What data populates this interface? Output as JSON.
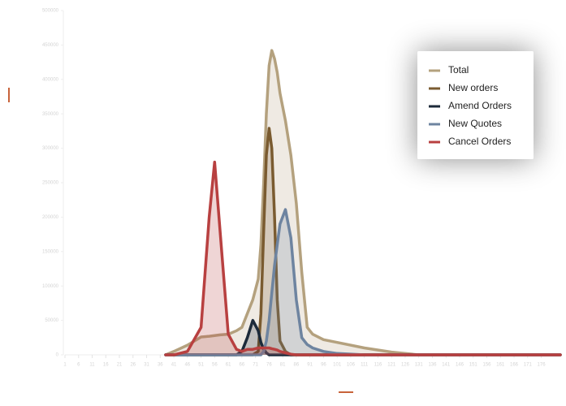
{
  "chart_data": {
    "type": "area",
    "x": [
      38,
      41,
      46,
      51,
      54,
      56,
      58,
      61,
      64,
      66,
      68,
      70,
      72,
      73,
      74,
      75,
      76,
      77,
      78,
      79,
      80,
      82,
      84,
      86,
      88,
      90,
      92,
      96,
      101,
      111,
      121,
      131,
      151,
      171,
      183
    ],
    "series": [
      {
        "name": "Total",
        "color": "#b4a17e",
        "values": [
          0,
          5000,
          14000,
          26000,
          27000,
          28000,
          29000,
          30000,
          35000,
          40000,
          60000,
          80000,
          110000,
          160000,
          250000,
          350000,
          420000,
          442000,
          430000,
          410000,
          380000,
          340000,
          290000,
          220000,
          120000,
          40000,
          30000,
          22000,
          18000,
          10000,
          4000,
          0,
          0,
          0,
          0
        ]
      },
      {
        "name": "New orders",
        "color": "#7a5b30",
        "values": [
          0,
          0,
          0,
          0,
          0,
          0,
          0,
          0,
          0,
          0,
          0,
          0,
          5000,
          60000,
          180000,
          290000,
          329000,
          300000,
          200000,
          80000,
          20000,
          5000,
          0,
          0,
          0,
          0,
          0,
          0,
          0,
          0,
          0,
          0,
          0,
          0,
          0
        ]
      },
      {
        "name": "Amend Orders",
        "color": "#1c2a3a",
        "values": [
          0,
          0,
          0,
          0,
          0,
          0,
          0,
          0,
          0,
          5000,
          25000,
          50000,
          35000,
          18000,
          8000,
          3000,
          0,
          0,
          0,
          0,
          0,
          0,
          0,
          0,
          0,
          0,
          0,
          0,
          0,
          0,
          0,
          0,
          0,
          0,
          0
        ]
      },
      {
        "name": "New Quotes",
        "color": "#6e84a0",
        "values": [
          0,
          0,
          0,
          0,
          0,
          0,
          0,
          0,
          0,
          0,
          0,
          0,
          0,
          0,
          5000,
          20000,
          50000,
          90000,
          130000,
          160000,
          190000,
          211000,
          170000,
          80000,
          25000,
          15000,
          10000,
          5000,
          2000,
          0,
          0,
          0,
          0,
          0,
          0
        ]
      },
      {
        "name": "Cancel Orders",
        "color": "#b84040",
        "values": [
          0,
          0,
          5000,
          40000,
          200000,
          280000,
          180000,
          30000,
          8000,
          5000,
          8000,
          8000,
          10000,
          10000,
          10000,
          10000,
          10000,
          9000,
          8000,
          7000,
          5000,
          3000,
          1000,
          0,
          0,
          0,
          0,
          0,
          0,
          0,
          0,
          0,
          0,
          0,
          0
        ]
      }
    ],
    "xlim": [
      1,
      183
    ],
    "xticks": [
      1,
      6,
      11,
      16,
      21,
      26,
      31,
      36,
      41,
      46,
      51,
      56,
      61,
      66,
      71,
      76,
      81,
      86,
      91,
      96,
      101,
      106,
      111,
      116,
      121,
      126,
      131,
      136,
      141,
      146,
      151,
      156,
      161,
      166,
      171,
      176
    ],
    "ylim": [
      0,
      500000
    ],
    "yticks": [
      0,
      50000,
      100000,
      150000,
      200000,
      250000,
      300000,
      350000,
      400000,
      450000,
      500000
    ],
    "legend": "top-right"
  }
}
